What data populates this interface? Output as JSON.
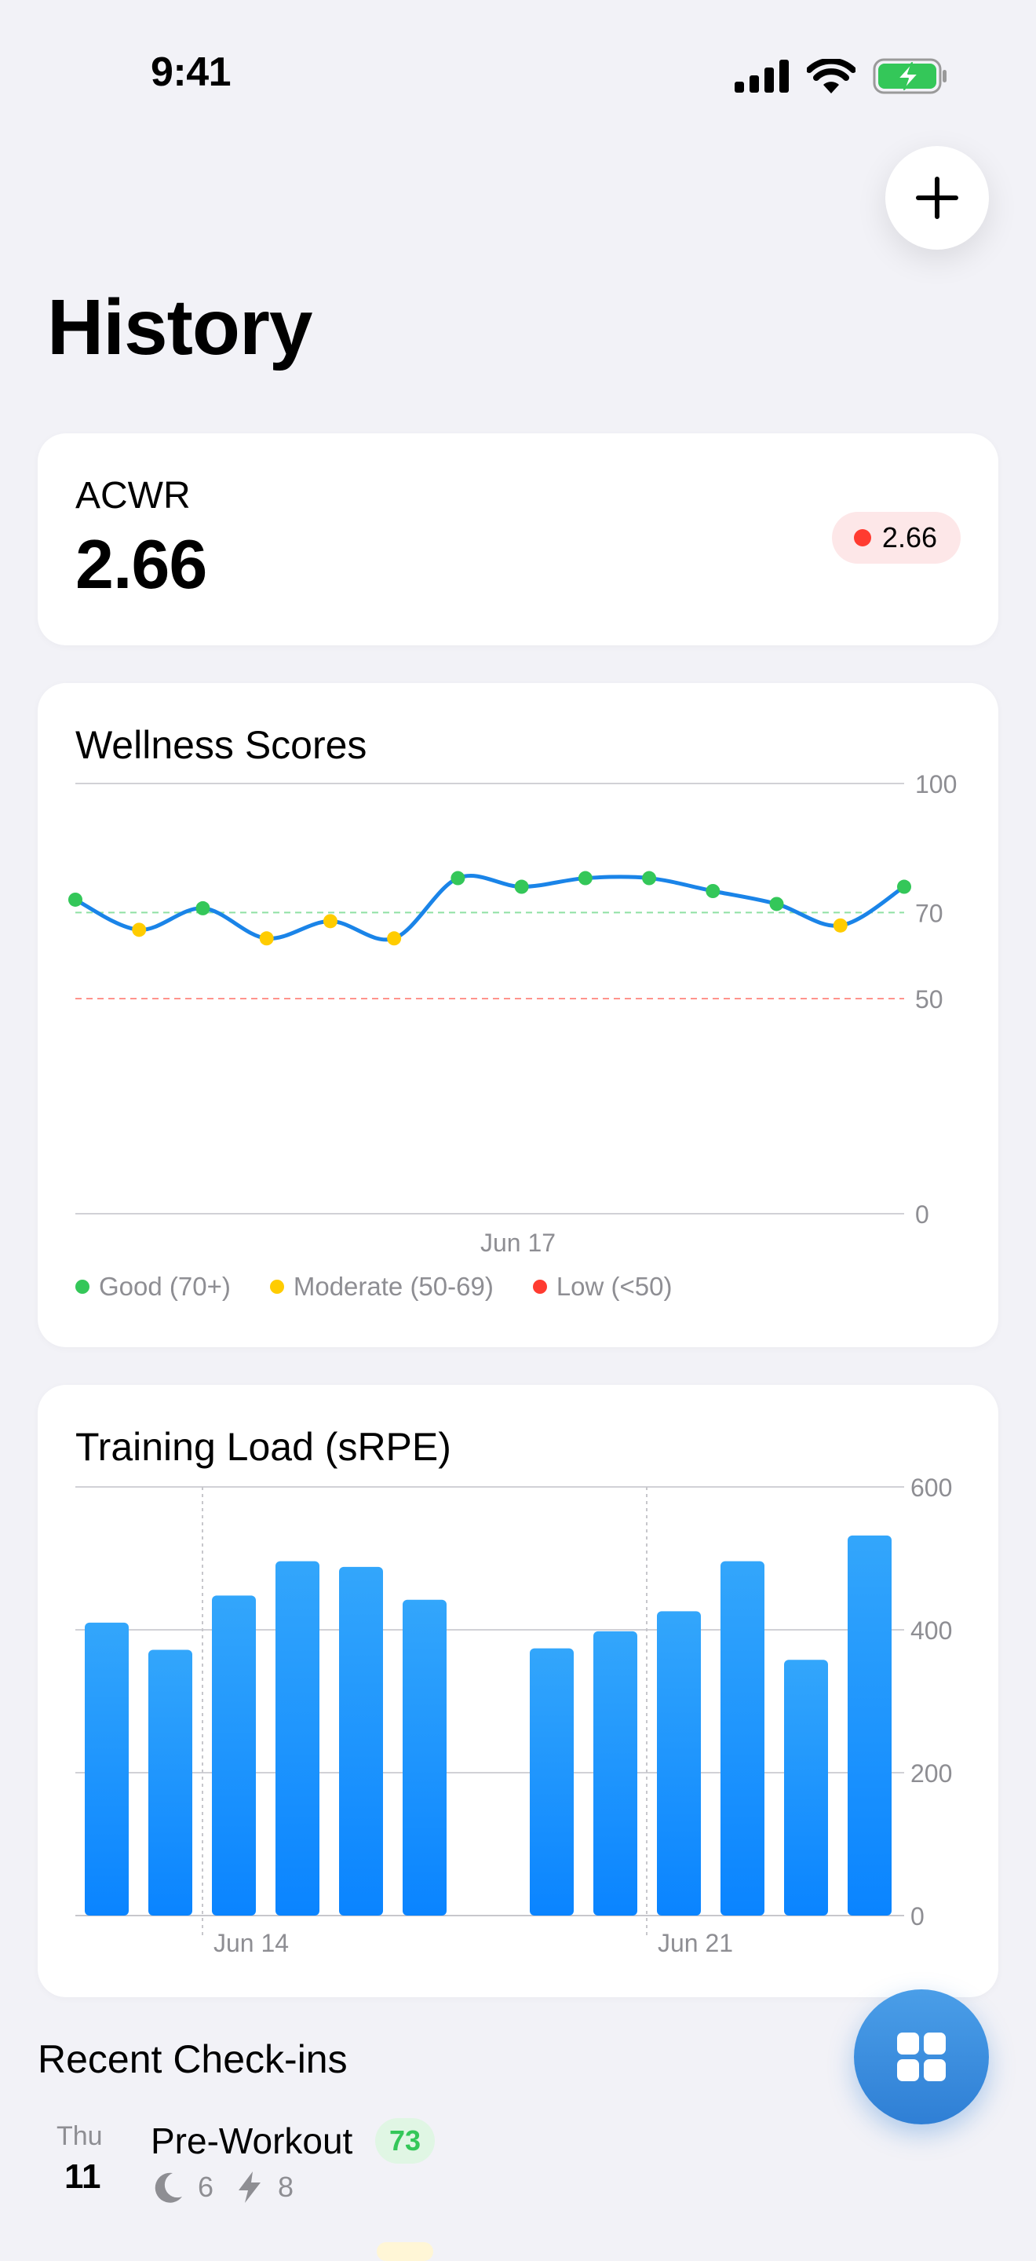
{
  "status_bar": {
    "time": "9:41"
  },
  "header": {
    "title": "History",
    "add_icon": "plus-icon"
  },
  "acwr": {
    "label": "ACWR",
    "value": "2.66",
    "badge_value": "2.66",
    "badge_color": "#ff3b30"
  },
  "wellness": {
    "title": "Wellness Scores",
    "legend": [
      {
        "label": "Good (70+)",
        "color": "#34c759"
      },
      {
        "label": "Moderate (50-69)",
        "color": "#ffcc00"
      },
      {
        "label": "Low (<50)",
        "color": "#ff3b30"
      }
    ]
  },
  "training_load": {
    "title": "Training Load (sRPE)"
  },
  "recent": {
    "title": "Recent Check-ins",
    "items": [
      {
        "day": "Thu",
        "date": "11",
        "title": "Pre-Workout",
        "score": "73",
        "sleep": "6",
        "energy": "8",
        "sleep_icon": "moon-icon",
        "energy_icon": "bolt-icon"
      }
    ]
  },
  "fab": {
    "icon": "grid-icon"
  },
  "chart_data": [
    {
      "type": "line",
      "title": "Wellness Scores",
      "x_tick_labels": [
        "Jun 17"
      ],
      "y_ticks": [
        0,
        50,
        70,
        100
      ],
      "ylim": [
        0,
        100
      ],
      "thresholds": [
        {
          "value": 70,
          "color": "#34c759"
        },
        {
          "value": 50,
          "color": "#ff3b30"
        }
      ],
      "series": [
        {
          "values": [
            73,
            66,
            71,
            64,
            68,
            64,
            78,
            76,
            78,
            78,
            75,
            72,
            67,
            76
          ]
        }
      ],
      "colors": {
        "line": "#1a84e8",
        "good": "#34c759",
        "moderate": "#ffcc00",
        "low": "#ff3b30"
      },
      "legend_placement": "bottom",
      "grid": true
    },
    {
      "type": "bar",
      "title": "Training Load (sRPE)",
      "x_tick_labels": [
        "Jun 14",
        "Jun 21"
      ],
      "y_ticks": [
        0,
        200,
        400,
        600
      ],
      "ylim": [
        0,
        600
      ],
      "values": [
        410,
        372,
        448,
        496,
        488,
        442,
        null,
        374,
        398,
        426,
        496,
        358,
        532
      ],
      "bar_color_top": "#33a6fb",
      "bar_color_bottom": "#0a84ff",
      "grid": true
    }
  ]
}
